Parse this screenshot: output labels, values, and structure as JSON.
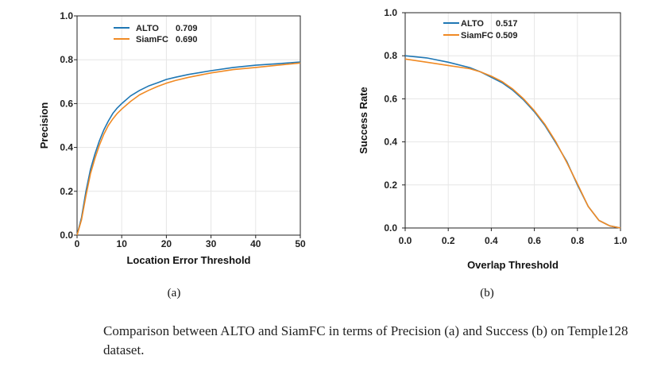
{
  "colors": {
    "alto": "#1f77b4",
    "siamfc": "#f08a24",
    "grid": "#e6e6e6",
    "axis": "#222222"
  },
  "chart_data": [
    {
      "type": "line",
      "panel_label": "(a)",
      "xlabel": "Location Error Threshold",
      "ylabel": "Precision",
      "xlim": [
        0,
        50
      ],
      "ylim": [
        0,
        1
      ],
      "xticks": [
        0,
        10,
        20,
        30,
        40,
        50
      ],
      "yticks": [
        "0.0",
        "0.2",
        "0.4",
        "0.6",
        "0.8",
        "1.0"
      ],
      "grid": true,
      "legend": "top-left",
      "series": [
        {
          "name": "ALTO",
          "score": "0.709",
          "color": "#1f77b4",
          "x": [
            0,
            1,
            2,
            3,
            4,
            5,
            6,
            7,
            8,
            9,
            10,
            12,
            14,
            16,
            18,
            20,
            22,
            25,
            30,
            35,
            40,
            45,
            50
          ],
          "y": [
            0.0,
            0.08,
            0.2,
            0.3,
            0.37,
            0.43,
            0.48,
            0.52,
            0.555,
            0.58,
            0.6,
            0.635,
            0.66,
            0.68,
            0.695,
            0.71,
            0.72,
            0.733,
            0.75,
            0.765,
            0.775,
            0.782,
            0.79
          ]
        },
        {
          "name": "SiamFC",
          "score": "0.690",
          "color": "#f08a24",
          "x": [
            0,
            1,
            2,
            3,
            4,
            5,
            6,
            7,
            8,
            9,
            10,
            12,
            14,
            16,
            18,
            20,
            22,
            25,
            30,
            35,
            40,
            45,
            50
          ],
          "y": [
            0.0,
            0.07,
            0.18,
            0.28,
            0.35,
            0.41,
            0.46,
            0.5,
            0.53,
            0.555,
            0.575,
            0.61,
            0.64,
            0.66,
            0.678,
            0.693,
            0.705,
            0.72,
            0.74,
            0.755,
            0.765,
            0.775,
            0.785
          ]
        }
      ]
    },
    {
      "type": "line",
      "panel_label": "(b)",
      "xlabel": "Overlap Threshold",
      "ylabel": "Success Rate",
      "xlim": [
        0,
        1
      ],
      "ylim": [
        0,
        1
      ],
      "xticks": [
        "0.0",
        "0.2",
        "0.4",
        "0.6",
        "0.8",
        "1.0"
      ],
      "yticks": [
        "0.0",
        "0.2",
        "0.4",
        "0.6",
        "0.8",
        "1.0"
      ],
      "grid": true,
      "legend": "top-center",
      "series": [
        {
          "name": "ALTO",
          "score": "0.517",
          "color": "#1f77b4",
          "x": [
            0,
            0.1,
            0.2,
            0.3,
            0.35,
            0.4,
            0.45,
            0.5,
            0.55,
            0.6,
            0.65,
            0.7,
            0.75,
            0.8,
            0.85,
            0.9,
            0.95,
            1.0
          ],
          "y": [
            0.8,
            0.79,
            0.77,
            0.745,
            0.725,
            0.7,
            0.675,
            0.64,
            0.595,
            0.54,
            0.475,
            0.395,
            0.31,
            0.2,
            0.1,
            0.035,
            0.01,
            0.0
          ]
        },
        {
          "name": "SiamFC",
          "score": "0.509",
          "color": "#f08a24",
          "x": [
            0,
            0.1,
            0.2,
            0.3,
            0.35,
            0.4,
            0.45,
            0.5,
            0.55,
            0.6,
            0.65,
            0.7,
            0.75,
            0.8,
            0.85,
            0.9,
            0.95,
            1.0
          ],
          "y": [
            0.785,
            0.77,
            0.755,
            0.74,
            0.725,
            0.705,
            0.68,
            0.645,
            0.6,
            0.545,
            0.48,
            0.4,
            0.305,
            0.205,
            0.1,
            0.035,
            0.01,
            0.0
          ]
        }
      ]
    }
  ],
  "caption": "Comparison between ALTO and SiamFC in terms of Precision (a) and Success (b) on Temple128 dataset."
}
